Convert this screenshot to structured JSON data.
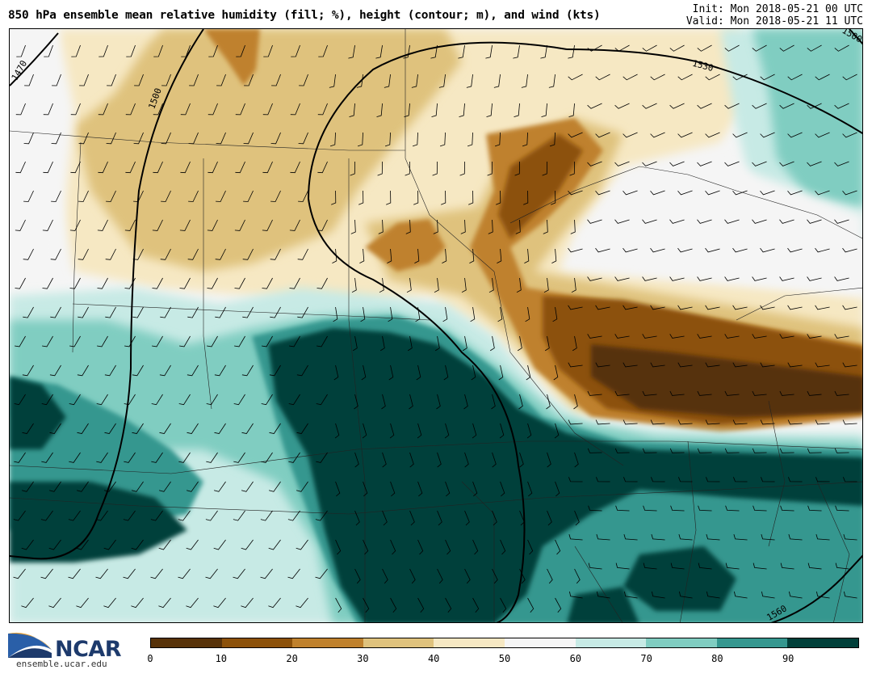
{
  "header": {
    "title": "850 hPa ensemble mean relative humidity (fill; %), height (contour; m), and wind (kts)",
    "init": "Init: Mon 2018-05-21 00 UTC",
    "valid": "Valid: Mon 2018-05-21 11 UTC"
  },
  "contour_labels": [
    "1470",
    "1500",
    "1530",
    "1500",
    "1560"
  ],
  "colorbar": {
    "ticks": [
      "0",
      "10",
      "20",
      "30",
      "40",
      "50",
      "60",
      "70",
      "80",
      "90"
    ],
    "colors": [
      "#573209",
      "#8c510a",
      "#bf812d",
      "#dfc27d",
      "#f6e8c3",
      "#f5f5f5",
      "#c7eae5",
      "#80cdc1",
      "#35978f",
      "#01403a"
    ]
  },
  "logo": {
    "name": "NCAR",
    "url": "ensemble.ucar.edu"
  }
}
